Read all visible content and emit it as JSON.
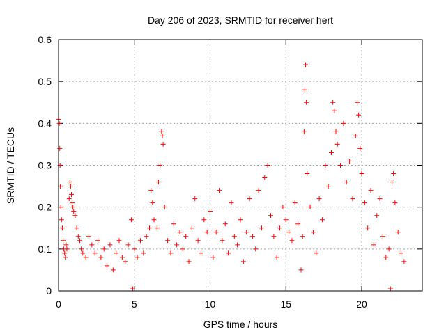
{
  "chart_data": {
    "type": "scatter",
    "title": "Day 206 of 2023, SRMTID for receiver hert",
    "xlabel": "GPS time / hours",
    "ylabel": "SRMTID / TECUs",
    "xlim": [
      0,
      24
    ],
    "ylim": [
      0,
      0.6
    ],
    "x_ticks": [
      0,
      5,
      10,
      15,
      20
    ],
    "x_tick_labels": [
      "0",
      "5",
      "10",
      "15",
      "20"
    ],
    "y_ticks": [
      0,
      0.1,
      0.2,
      0.3,
      0.4,
      0.5,
      0.6
    ],
    "y_tick_labels": [
      "0",
      "0.1",
      "0.2",
      "0.3",
      "0.4",
      "0.5",
      "0.6"
    ],
    "grid": true,
    "marker": "+",
    "marker_color": "#ff0000",
    "x_range_shown": [
      0,
      22.8
    ],
    "series": [
      {
        "name": "SRMTID",
        "points": [
          [
            0.02,
            0.41
          ],
          [
            0.05,
            0.4
          ],
          [
            0.08,
            0.34
          ],
          [
            0.1,
            0.3
          ],
          [
            0.12,
            0.25
          ],
          [
            0.15,
            0.2
          ],
          [
            0.2,
            0.17
          ],
          [
            0.25,
            0.15
          ],
          [
            0.3,
            0.12
          ],
          [
            0.35,
            0.1
          ],
          [
            0.4,
            0.09
          ],
          [
            0.45,
            0.08
          ],
          [
            0.5,
            0.11
          ],
          [
            0.55,
            0.1
          ],
          [
            0.7,
            0.22
          ],
          [
            0.75,
            0.26
          ],
          [
            0.8,
            0.25
          ],
          [
            0.85,
            0.23
          ],
          [
            0.9,
            0.21
          ],
          [
            0.95,
            0.2
          ],
          [
            1.0,
            0.19
          ],
          [
            1.1,
            0.18
          ],
          [
            1.2,
            0.15
          ],
          [
            1.3,
            0.13
          ],
          [
            1.4,
            0.12
          ],
          [
            1.5,
            0.1
          ],
          [
            1.6,
            0.09
          ],
          [
            1.8,
            0.08
          ],
          [
            2.0,
            0.13
          ],
          [
            2.2,
            0.11
          ],
          [
            2.4,
            0.09
          ],
          [
            2.6,
            0.12
          ],
          [
            2.8,
            0.08
          ],
          [
            3.0,
            0.1
          ],
          [
            3.2,
            0.06
          ],
          [
            3.4,
            0.11
          ],
          [
            3.6,
            0.05
          ],
          [
            3.8,
            0.09
          ],
          [
            4.0,
            0.12
          ],
          [
            4.2,
            0.08
          ],
          [
            4.4,
            0.07
          ],
          [
            4.6,
            0.11
          ],
          [
            4.8,
            0.17
          ],
          [
            4.9,
            0.005
          ],
          [
            5.0,
            0.1
          ],
          [
            5.2,
            0.08
          ],
          [
            5.4,
            0.12
          ],
          [
            5.6,
            0.09
          ],
          [
            5.8,
            0.13
          ],
          [
            6.0,
            0.15
          ],
          [
            6.1,
            0.24
          ],
          [
            6.2,
            0.21
          ],
          [
            6.3,
            0.17
          ],
          [
            6.5,
            0.15
          ],
          [
            6.6,
            0.26
          ],
          [
            6.7,
            0.3
          ],
          [
            6.8,
            0.38
          ],
          [
            6.85,
            0.37
          ],
          [
            6.9,
            0.35
          ],
          [
            7.0,
            0.2
          ],
          [
            7.2,
            0.12
          ],
          [
            7.4,
            0.09
          ],
          [
            7.6,
            0.16
          ],
          [
            7.8,
            0.11
          ],
          [
            8.0,
            0.14
          ],
          [
            8.2,
            0.1
          ],
          [
            8.4,
            0.13
          ],
          [
            8.6,
            0.07
          ],
          [
            8.8,
            0.15
          ],
          [
            9.0,
            0.22
          ],
          [
            9.2,
            0.12
          ],
          [
            9.4,
            0.09
          ],
          [
            9.6,
            0.17
          ],
          [
            9.8,
            0.14
          ],
          [
            10.0,
            0.19
          ],
          [
            10.2,
            0.08
          ],
          [
            10.4,
            0.14
          ],
          [
            10.6,
            0.24
          ],
          [
            10.8,
            0.12
          ],
          [
            11.0,
            0.16
          ],
          [
            11.2,
            0.09
          ],
          [
            11.4,
            0.21
          ],
          [
            11.6,
            0.13
          ],
          [
            11.8,
            0.11
          ],
          [
            12.0,
            0.17
          ],
          [
            12.2,
            0.07
          ],
          [
            12.4,
            0.14
          ],
          [
            12.6,
            0.22
          ],
          [
            12.8,
            0.13
          ],
          [
            13.0,
            0.1
          ],
          [
            13.2,
            0.24
          ],
          [
            13.4,
            0.15
          ],
          [
            13.6,
            0.27
          ],
          [
            13.8,
            0.3
          ],
          [
            14.0,
            0.18
          ],
          [
            14.2,
            0.13
          ],
          [
            14.4,
            0.08
          ],
          [
            14.6,
            0.15
          ],
          [
            14.8,
            0.2
          ],
          [
            15.0,
            0.17
          ],
          [
            15.2,
            0.14
          ],
          [
            15.4,
            0.12
          ],
          [
            15.6,
            0.21
          ],
          [
            15.8,
            0.16
          ],
          [
            16.0,
            0.05
          ],
          [
            16.1,
            0.13
          ],
          [
            16.2,
            0.38
          ],
          [
            16.25,
            0.48
          ],
          [
            16.3,
            0.54
          ],
          [
            16.35,
            0.45
          ],
          [
            16.4,
            0.28
          ],
          [
            16.6,
            0.2
          ],
          [
            16.8,
            0.14
          ],
          [
            17.0,
            0.09
          ],
          [
            17.2,
            0.22
          ],
          [
            17.4,
            0.17
          ],
          [
            17.6,
            0.3
          ],
          [
            17.8,
            0.25
          ],
          [
            18.0,
            0.33
          ],
          [
            18.1,
            0.45
          ],
          [
            18.2,
            0.43
          ],
          [
            18.3,
            0.38
          ],
          [
            18.4,
            0.35
          ],
          [
            18.6,
            0.3
          ],
          [
            18.8,
            0.4
          ],
          [
            19.0,
            0.26
          ],
          [
            19.2,
            0.31
          ],
          [
            19.4,
            0.22
          ],
          [
            19.6,
            0.37
          ],
          [
            19.7,
            0.45
          ],
          [
            19.8,
            0.42
          ],
          [
            19.9,
            0.34
          ],
          [
            20.0,
            0.28
          ],
          [
            20.2,
            0.21
          ],
          [
            20.4,
            0.15
          ],
          [
            20.6,
            0.24
          ],
          [
            20.8,
            0.11
          ],
          [
            21.0,
            0.18
          ],
          [
            21.2,
            0.22
          ],
          [
            21.4,
            0.13
          ],
          [
            21.6,
            0.08
          ],
          [
            21.8,
            0.1
          ],
          [
            21.9,
            0.005
          ],
          [
            22.0,
            0.26
          ],
          [
            22.1,
            0.28
          ],
          [
            22.2,
            0.21
          ],
          [
            22.4,
            0.14
          ],
          [
            22.6,
            0.09
          ],
          [
            22.8,
            0.07
          ]
        ]
      }
    ]
  }
}
